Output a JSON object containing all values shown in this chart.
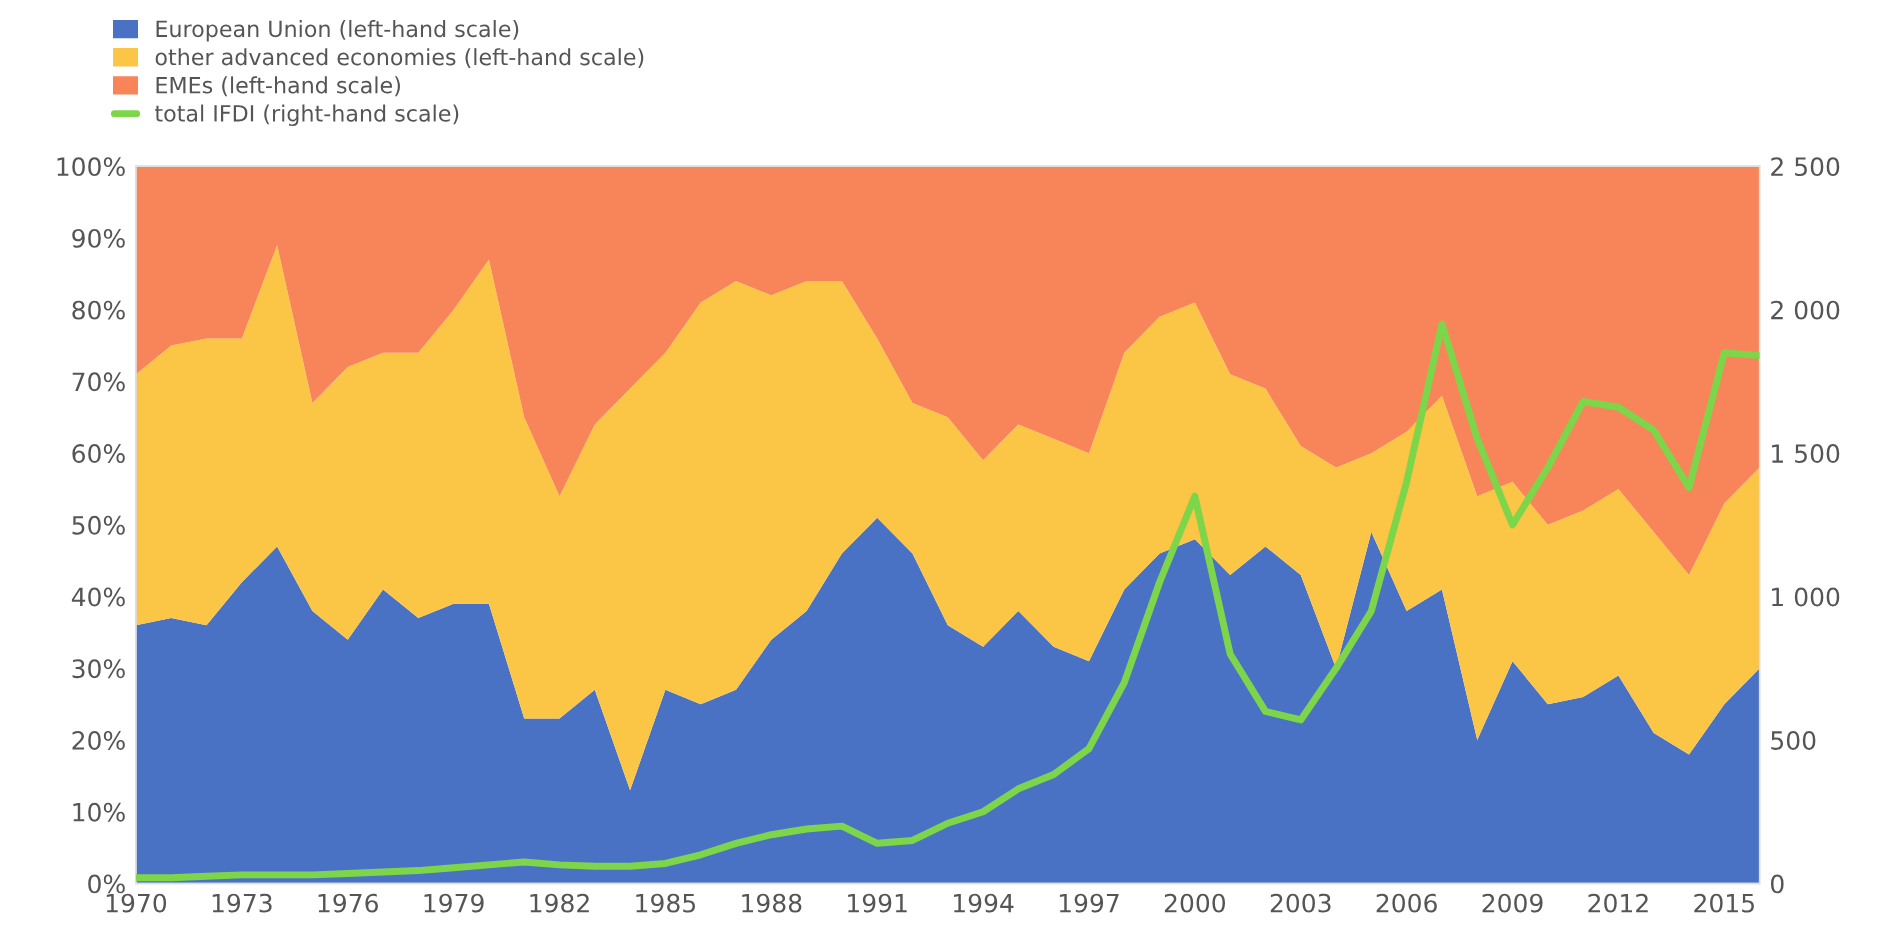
{
  "chart_data": {
    "type": "area",
    "stacked": true,
    "x": [
      1970,
      1971,
      1972,
      1973,
      1974,
      1975,
      1976,
      1977,
      1978,
      1979,
      1980,
      1981,
      1982,
      1983,
      1984,
      1985,
      1986,
      1987,
      1988,
      1989,
      1990,
      1991,
      1992,
      1993,
      1994,
      1995,
      1996,
      1997,
      1998,
      1999,
      2000,
      2001,
      2002,
      2003,
      2004,
      2005,
      2006,
      2007,
      2008,
      2009,
      2010,
      2011,
      2012,
      2013,
      2014,
      2015,
      2016
    ],
    "series": [
      {
        "name": "European Union (left-hand scale)",
        "color": "#4a72c4",
        "values": [
          36,
          37,
          36,
          42,
          47,
          38,
          34,
          41,
          37,
          39,
          39,
          23,
          23,
          27,
          13,
          27,
          25,
          27,
          34,
          38,
          46,
          51,
          46,
          36,
          33,
          38,
          33,
          31,
          41,
          46,
          48,
          43,
          47,
          43,
          30,
          49,
          38,
          41,
          20,
          31,
          25,
          26,
          29,
          21,
          18,
          25,
          30
        ]
      },
      {
        "name": "other advanced economies (left-hand scale)",
        "color": "#fbc546",
        "values": [
          35,
          38,
          40,
          34,
          42,
          29,
          38,
          33,
          37,
          41,
          48,
          42,
          31,
          37,
          56,
          47,
          56,
          57,
          48,
          46,
          38,
          25,
          21,
          29,
          26,
          26,
          29,
          29,
          33,
          33,
          33,
          28,
          22,
          18,
          28,
          11,
          25,
          27,
          34,
          25,
          25,
          26,
          26,
          28,
          25,
          28,
          28
        ]
      },
      {
        "name": "EMEs (left-hand scale)",
        "color": "#f78559",
        "values": [
          29,
          25,
          24,
          24,
          11,
          33,
          28,
          26,
          26,
          20,
          13,
          35,
          46,
          36,
          31,
          26,
          19,
          16,
          18,
          16,
          16,
          24,
          33,
          35,
          41,
          36,
          38,
          40,
          26,
          21,
          19,
          29,
          31,
          39,
          42,
          40,
          37,
          32,
          46,
          44,
          50,
          48,
          45,
          51,
          57,
          47,
          42
        ]
      },
      {
        "name": "total IFDI (right-hand scale)",
        "color": "#7dd64a",
        "type": "line",
        "axis": "y2",
        "values": [
          20,
          20,
          25,
          30,
          30,
          30,
          35,
          40,
          45,
          55,
          65,
          75,
          65,
          60,
          60,
          70,
          100,
          140,
          170,
          190,
          200,
          140,
          150,
          210,
          250,
          330,
          380,
          470,
          700,
          1050,
          1350,
          800,
          600,
          570,
          750,
          950,
          1400,
          1950,
          1550,
          1250,
          1450,
          1680,
          1660,
          1580,
          1380,
          1850,
          1840
        ]
      }
    ],
    "xlim": [
      1970,
      2016
    ],
    "xticks": [
      1970,
      1973,
      1976,
      1979,
      1982,
      1985,
      1988,
      1991,
      1994,
      1997,
      2000,
      2003,
      2006,
      2009,
      2012,
      2015
    ],
    "ylim": [
      0,
      100
    ],
    "yticks": [
      {
        "value": 0,
        "label": "0%"
      },
      {
        "value": 10,
        "label": "10%"
      },
      {
        "value": 20,
        "label": "20%"
      },
      {
        "value": 30,
        "label": "30%"
      },
      {
        "value": 40,
        "label": "40%"
      },
      {
        "value": 50,
        "label": "50%"
      },
      {
        "value": 60,
        "label": "60%"
      },
      {
        "value": 70,
        "label": "70%"
      },
      {
        "value": 80,
        "label": "80%"
      },
      {
        "value": 90,
        "label": "90%"
      },
      {
        "value": 100,
        "label": "100%"
      }
    ],
    "y2lim": [
      0,
      2500
    ],
    "y2ticks": [
      {
        "value": 0,
        "label": "0"
      },
      {
        "value": 500,
        "label": "500"
      },
      {
        "value": 1000,
        "label": "1 000"
      },
      {
        "value": 1500,
        "label": "1 500"
      },
      {
        "value": 2000,
        "label": "2 000"
      },
      {
        "value": 2500,
        "label": "2 500"
      }
    ],
    "legend": "top left",
    "grid": false
  }
}
